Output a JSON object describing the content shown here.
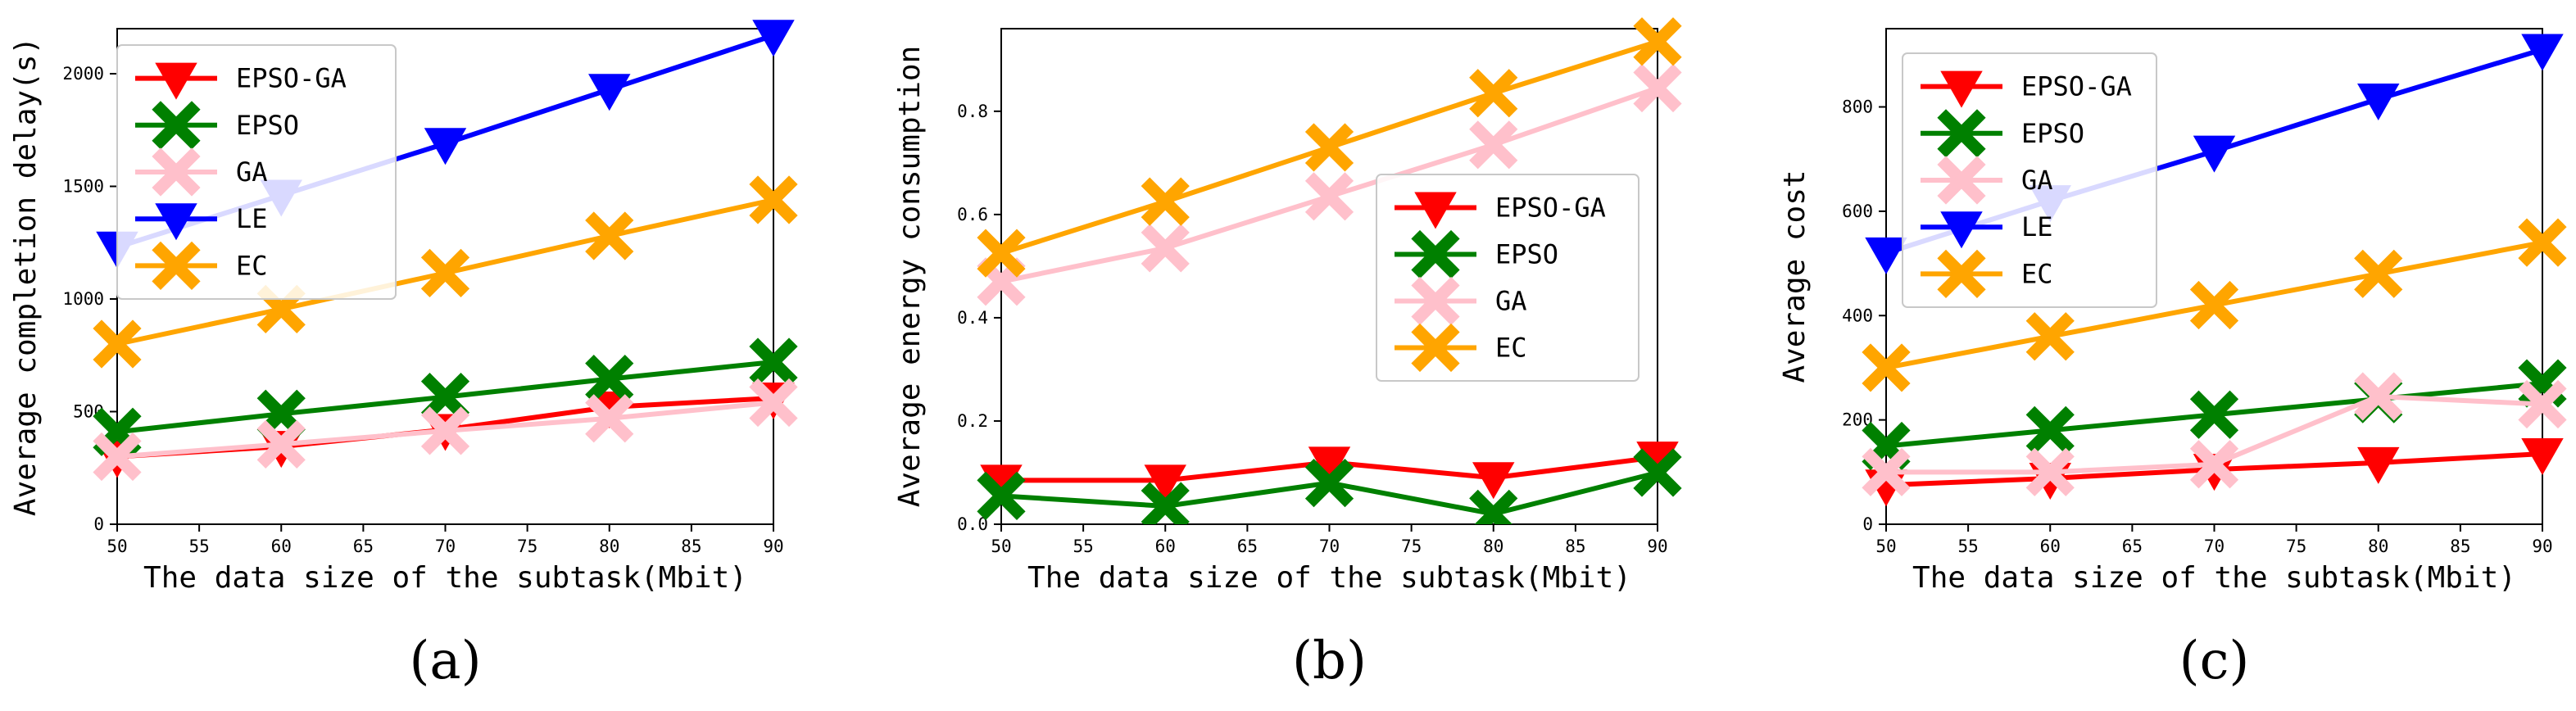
{
  "chart_data": [
    {
      "id": "a",
      "type": "line",
      "caption": "(a)",
      "xlabel": "The data size of the subtask(Mbit)",
      "ylabel": "Average completion delay(s)",
      "x": [
        50,
        60,
        70,
        80,
        90
      ],
      "xlim": [
        50,
        90
      ],
      "ylim": [
        0,
        2200
      ],
      "xticks": [
        50,
        55,
        60,
        65,
        70,
        75,
        80,
        85,
        90
      ],
      "yticks": [
        0,
        500,
        1000,
        1500,
        2000
      ],
      "legend_position": "upper-left",
      "series": [
        {
          "name": "EPSO-GA",
          "color": "#ff0000",
          "marker": "triangle-down",
          "values": [
            300,
            345,
            420,
            520,
            560
          ]
        },
        {
          "name": "EPSO",
          "color": "#008000",
          "marker": "x",
          "values": [
            410,
            490,
            565,
            645,
            720
          ]
        },
        {
          "name": "GA",
          "color": "#ffc0cb",
          "marker": "x",
          "values": [
            300,
            355,
            415,
            470,
            540
          ]
        },
        {
          "name": "LE",
          "color": "#0000ff",
          "marker": "triangle-down",
          "values": [
            1230,
            1460,
            1690,
            1930,
            2170
          ]
        },
        {
          "name": "EC",
          "color": "#ffa500",
          "marker": "x",
          "values": [
            800,
            955,
            1115,
            1280,
            1440
          ]
        }
      ]
    },
    {
      "id": "b",
      "type": "line",
      "caption": "(b)",
      "xlabel": "The data size of the subtask(Mbit)",
      "ylabel": "Average energy consumption",
      "x": [
        50,
        60,
        70,
        80,
        90
      ],
      "xlim": [
        50,
        90
      ],
      "ylim": [
        0,
        0.96
      ],
      "xticks": [
        50,
        55,
        60,
        65,
        70,
        75,
        80,
        85,
        90
      ],
      "yticks": [
        0.0,
        0.2,
        0.4,
        0.6,
        0.8
      ],
      "legend_position": "center-right",
      "series": [
        {
          "name": "EPSO-GA",
          "color": "#ff0000",
          "marker": "triangle-down",
          "values": [
            0.085,
            0.085,
            0.12,
            0.09,
            0.13
          ]
        },
        {
          "name": "EPSO",
          "color": "#008000",
          "marker": "x",
          "values": [
            0.055,
            0.035,
            0.08,
            0.02,
            0.1
          ]
        },
        {
          "name": "GA",
          "color": "#ffc0cb",
          "marker": "x",
          "values": [
            0.47,
            0.535,
            0.635,
            0.735,
            0.845
          ]
        },
        {
          "name": "EC",
          "color": "#ffa500",
          "marker": "x",
          "values": [
            0.525,
            0.625,
            0.73,
            0.835,
            0.935
          ]
        }
      ]
    },
    {
      "id": "c",
      "type": "line",
      "caption": "(c)",
      "xlabel": "The data size of the subtask(Mbit)",
      "ylabel": "Average cost",
      "x": [
        50,
        60,
        70,
        80,
        90
      ],
      "xlim": [
        50,
        90
      ],
      "ylim": [
        0,
        950
      ],
      "xticks": [
        50,
        55,
        60,
        65,
        70,
        75,
        80,
        85,
        90
      ],
      "yticks": [
        0,
        200,
        400,
        600,
        800
      ],
      "legend_position": "upper-left",
      "series": [
        {
          "name": "EPSO-GA",
          "color": "#ff0000",
          "marker": "triangle-down",
          "values": [
            75,
            88,
            105,
            118,
            135
          ]
        },
        {
          "name": "EPSO",
          "color": "#008000",
          "marker": "x",
          "values": [
            150,
            180,
            210,
            240,
            270
          ]
        },
        {
          "name": "GA",
          "color": "#ffc0cb",
          "marker": "x",
          "values": [
            100,
            100,
            115,
            245,
            230
          ]
        },
        {
          "name": "LE",
          "color": "#0000ff",
          "marker": "triangle-down",
          "values": [
            520,
            620,
            715,
            815,
            910
          ]
        },
        {
          "name": "EC",
          "color": "#ffa500",
          "marker": "x",
          "values": [
            300,
            360,
            420,
            480,
            540
          ]
        }
      ]
    }
  ]
}
